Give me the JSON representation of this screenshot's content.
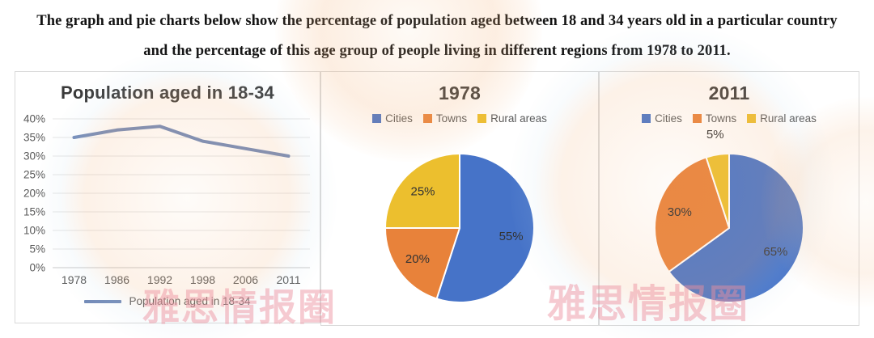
{
  "page": {
    "heading_line1": "The graph and pie charts below show the percentage of population aged between 18 and 34 years old in a particular country",
    "heading_line2": "and the percentage of this age group of people living in different regions from 1978 to 2011.",
    "watermark_text": "雅思情报圈"
  },
  "chart_data": [
    {
      "type": "line",
      "title": "Population aged in 18-34",
      "x": [
        "1978",
        "1986",
        "1992",
        "1998",
        "2006",
        "2011"
      ],
      "series": [
        {
          "name": "Population aged in 18-34",
          "values": [
            35,
            37,
            38,
            34,
            32,
            30
          ]
        }
      ],
      "ylabel": "",
      "xlabel": "",
      "ylim": [
        0,
        40
      ],
      "ytick_step": 5,
      "ytick_suffix": "%",
      "grid": true,
      "legend_position": "bottom",
      "line_color": "#7189b7"
    },
    {
      "type": "pie",
      "title": "1978",
      "labels": [
        "Cities",
        "Towns",
        "Rural areas"
      ],
      "values": [
        55,
        20,
        25
      ],
      "colors": [
        "#4673c8",
        "#e8823a",
        "#ecbf2e"
      ],
      "label_suffix": "%",
      "legend_position": "top",
      "start_angle_deg": 0,
      "direction": "clockwise"
    },
    {
      "type": "pie",
      "title": "2011",
      "labels": [
        "Cities",
        "Towns",
        "Rural areas"
      ],
      "values": [
        65,
        30,
        5
      ],
      "colors": [
        "#4673c8",
        "#e8823a",
        "#ecbf2e"
      ],
      "label_suffix": "%",
      "legend_position": "top",
      "start_angle_deg": 0,
      "direction": "clockwise"
    }
  ]
}
